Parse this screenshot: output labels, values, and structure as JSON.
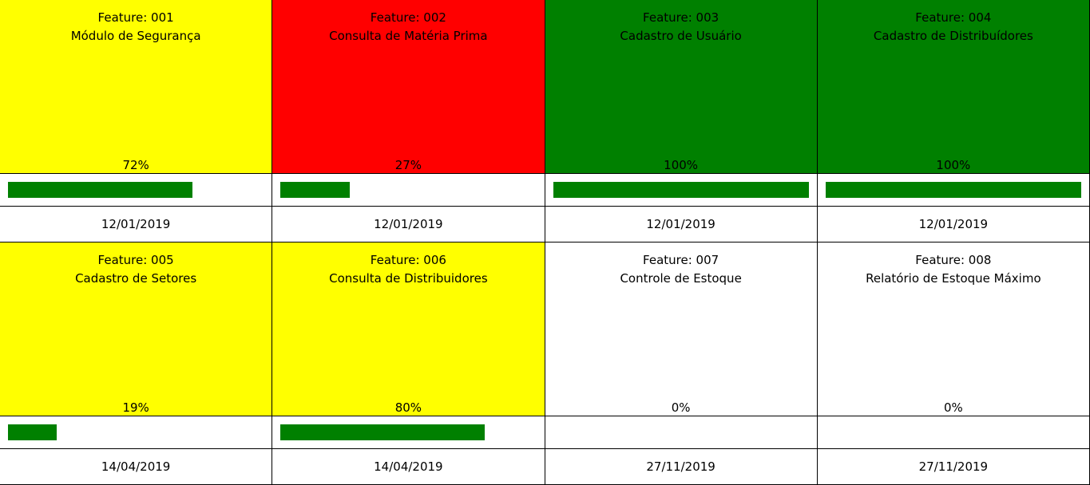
{
  "colors": {
    "yellow": "#ffff00",
    "red": "#ff0000",
    "green": "#008000",
    "white": "#ffffff",
    "bar": "#008000"
  },
  "features": [
    {
      "id": "Feature: 001",
      "name": "Módulo de Segurança",
      "percent_label": "72%",
      "progress": 0.72,
      "date": "12/01/2019",
      "status_color": "#ffff00"
    },
    {
      "id": "Feature: 002",
      "name": "Consulta de Matéria Prima",
      "percent_label": "27%",
      "progress": 0.27,
      "date": "12/01/2019",
      "status_color": "#ff0000"
    },
    {
      "id": "Feature: 003",
      "name": "Cadastro de Usuário",
      "percent_label": "100%",
      "progress": 1.0,
      "date": "12/01/2019",
      "status_color": "#008000"
    },
    {
      "id": "Feature: 004",
      "name": "Cadastro de Distribuídores",
      "percent_label": "100%",
      "progress": 1.0,
      "date": "12/01/2019",
      "status_color": "#008000"
    },
    {
      "id": "Feature: 005",
      "name": "Cadastro de Setores",
      "percent_label": "19%",
      "progress": 0.19,
      "date": "14/04/2019",
      "status_color": "#ffff00"
    },
    {
      "id": "Feature: 006",
      "name": "Consulta de Distribuidores",
      "percent_label": "80%",
      "progress": 0.8,
      "date": "14/04/2019",
      "status_color": "#ffff00"
    },
    {
      "id": "Feature: 007",
      "name": "Controle de Estoque",
      "percent_label": "0%",
      "progress": 0.0,
      "date": "27/11/2019",
      "status_color": "#ffffff"
    },
    {
      "id": "Feature: 008",
      "name": "Relatório de Estoque Máximo",
      "percent_label": "0%",
      "progress": 0.0,
      "date": "27/11/2019",
      "status_color": "#ffffff"
    }
  ]
}
